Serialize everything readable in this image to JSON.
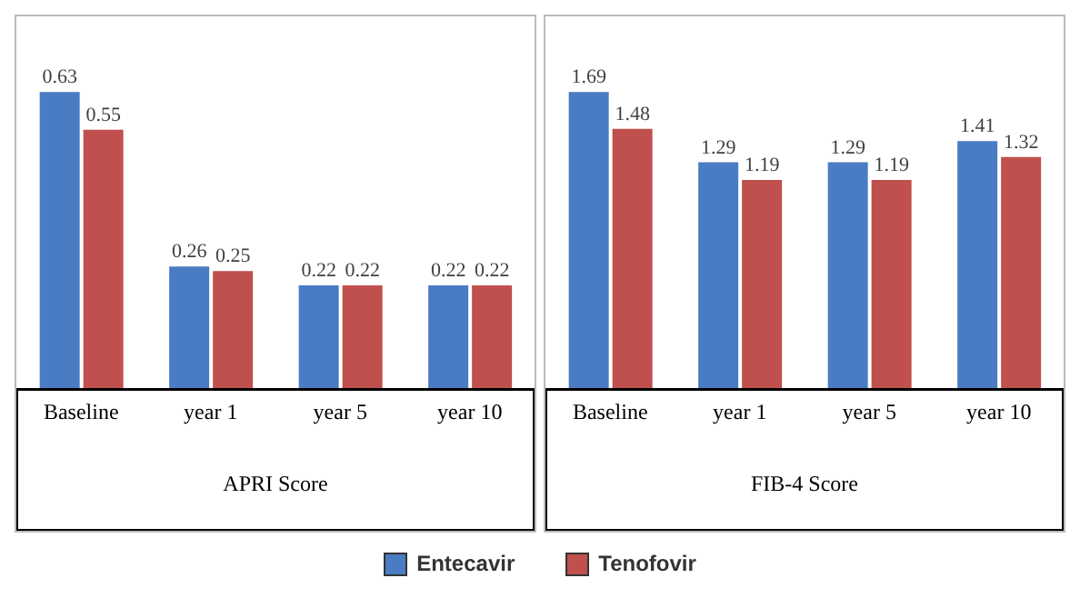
{
  "chart_data": [
    {
      "type": "bar",
      "xlabel": "APRI Score",
      "categories": [
        "Baseline",
        "year 1",
        "year 5",
        "year 10"
      ],
      "series": [
        {
          "name": "Entecavir",
          "color": "#4a7cc4",
          "values": [
            0.63,
            0.26,
            0.22,
            0.22
          ]
        },
        {
          "name": "Tenofovir",
          "color": "#c0504d",
          "values": [
            0.55,
            0.25,
            0.22,
            0.22
          ]
        }
      ],
      "data_labels": true,
      "tick_labels": "x",
      "legend": "bottom",
      "grid": false
    },
    {
      "type": "bar",
      "xlabel": "FIB-4 Score",
      "categories": [
        "Baseline",
        "year 1",
        "year 5",
        "year 10"
      ],
      "series": [
        {
          "color": "#4a7cc4",
          "values": [
            1.69,
            1.29,
            1.29,
            1.41
          ]
        },
        {
          "color": "#c0504d",
          "values": [
            1.48,
            1.19,
            1.19,
            1.32
          ]
        }
      ],
      "data_labels": true,
      "tick_labels": "x",
      "grid": false
    }
  ]
}
